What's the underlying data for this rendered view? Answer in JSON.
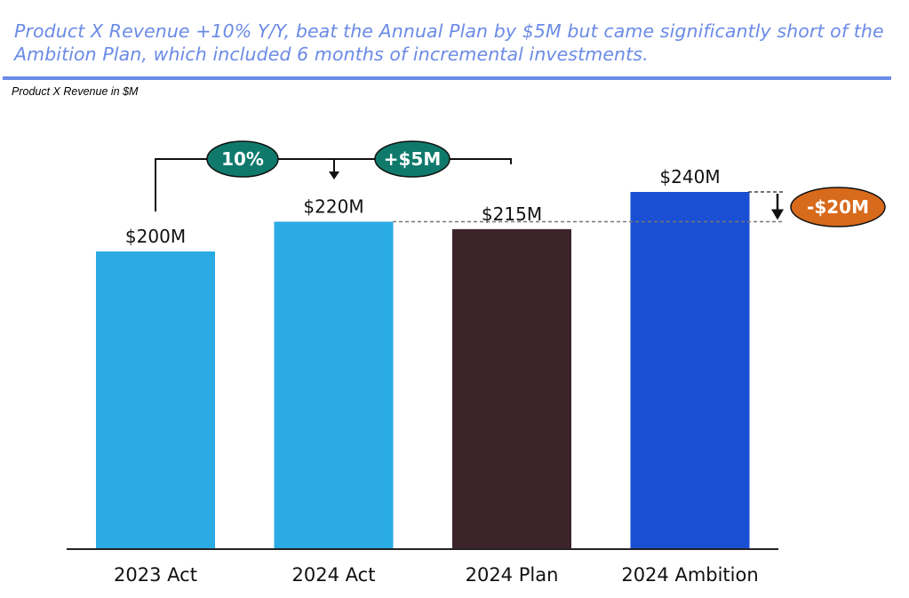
{
  "header": {
    "headline": "Product X Revenue +10% Y/Y, beat the Annual Plan by $5M but came significantly short of the Ambition Plan, which included 6 months of incremental investments.",
    "subtitle": "Product X Revenue in $M",
    "accent_color": "#6b8be6"
  },
  "chart_data": {
    "type": "bar",
    "title": "Product X Revenue +10% Y/Y, beat the Annual Plan by $5M but came significantly short of the Ambition Plan, which included 6 months of incremental investments.",
    "ylabel": "Product X Revenue in $M",
    "xlabel": "",
    "categories": [
      "2023 Act",
      "2024 Act",
      "2024 Plan",
      "2024 Ambition"
    ],
    "values": [
      200,
      220,
      215,
      240
    ],
    "value_labels": [
      "$200M",
      "$220M",
      "$215M",
      "$240M"
    ],
    "colors": [
      "#2aabe4",
      "#2aabe4",
      "#3d242a",
      "#1a4fd3"
    ],
    "ylim": [
      0,
      240
    ],
    "grid": false,
    "legend": "none",
    "annotations": [
      {
        "label": "10%",
        "from": "2023 Act",
        "to": "2024 Act",
        "meaning": "Y/Y growth",
        "color": "#0f7a6c"
      },
      {
        "label": "+$5M",
        "from": "2024 Plan",
        "to": "2024 Act",
        "meaning": "Actual vs Plan",
        "color": "#0f7a6c"
      },
      {
        "label": "-$20M",
        "from": "2024 Ambition",
        "to": "2024 Act",
        "meaning": "Actual vs Ambition",
        "color": "#d86a1c"
      }
    ]
  }
}
